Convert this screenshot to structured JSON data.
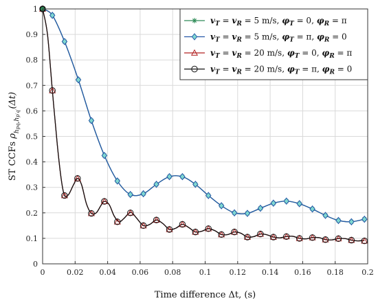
{
  "chart_data": {
    "type": "line",
    "xlabel": "Time difference  Δt, (s)",
    "ylabel": "ST CCFs ρ_{h_pq, h_p'q'}(Δt)",
    "xlim": [
      0,
      0.2
    ],
    "ylim": [
      0,
      1
    ],
    "x_ticks": [
      "0",
      "0.02",
      "0.04",
      "0.06",
      "0.08",
      "0.1",
      "0.12",
      "0.14",
      "0.16",
      "0.18",
      "0.2"
    ],
    "y_ticks": [
      "0",
      "0.1",
      "0.2",
      "0.3",
      "0.4",
      "0.5",
      "0.6",
      "0.7",
      "0.8",
      "0.9",
      "1"
    ],
    "grid": true,
    "legend_position": "top-right",
    "series": [
      {
        "name": "vT = vR = 5 m/s, φT = 0, φR = π",
        "color": "#2e8b57",
        "marker": "asterisk",
        "line": [
          [
            0,
            1
          ],
          [
            0.006,
            0.975
          ],
          [
            0.0135,
            0.872
          ],
          [
            0.022,
            0.722
          ],
          [
            0.03,
            0.562
          ],
          [
            0.038,
            0.425
          ],
          [
            0.046,
            0.325
          ],
          [
            0.054,
            0.272
          ],
          [
            0.062,
            0.275
          ],
          [
            0.07,
            0.312
          ],
          [
            0.078,
            0.342
          ],
          [
            0.086,
            0.342
          ],
          [
            0.094,
            0.312
          ],
          [
            0.102,
            0.268
          ],
          [
            0.11,
            0.228
          ],
          [
            0.118,
            0.2
          ],
          [
            0.126,
            0.198
          ],
          [
            0.134,
            0.218
          ],
          [
            0.142,
            0.238
          ],
          [
            0.15,
            0.246
          ],
          [
            0.158,
            0.236
          ],
          [
            0.166,
            0.215
          ],
          [
            0.174,
            0.19
          ],
          [
            0.182,
            0.17
          ],
          [
            0.19,
            0.165
          ],
          [
            0.198,
            0.175
          ]
        ],
        "markers": [
          [
            0,
            1
          ],
          [
            0.006,
            0.975
          ],
          [
            0.0135,
            0.872
          ],
          [
            0.022,
            0.722
          ],
          [
            0.03,
            0.562
          ],
          [
            0.038,
            0.425
          ],
          [
            0.046,
            0.325
          ],
          [
            0.054,
            0.272
          ],
          [
            0.062,
            0.275
          ],
          [
            0.07,
            0.312
          ],
          [
            0.078,
            0.342
          ],
          [
            0.086,
            0.342
          ],
          [
            0.094,
            0.312
          ],
          [
            0.102,
            0.268
          ],
          [
            0.11,
            0.228
          ],
          [
            0.118,
            0.2
          ],
          [
            0.126,
            0.198
          ],
          [
            0.134,
            0.218
          ],
          [
            0.142,
            0.238
          ],
          [
            0.15,
            0.246
          ],
          [
            0.158,
            0.236
          ],
          [
            0.166,
            0.215
          ],
          [
            0.174,
            0.19
          ],
          [
            0.182,
            0.17
          ],
          [
            0.19,
            0.165
          ],
          [
            0.198,
            0.175
          ]
        ]
      },
      {
        "name": "vT = vR = 5 m/s, φT = π, φR = 0",
        "color": "#2457a8",
        "marker": "diamond",
        "line": [
          [
            0,
            1
          ],
          [
            0.006,
            0.975
          ],
          [
            0.0135,
            0.872
          ],
          [
            0.022,
            0.722
          ],
          [
            0.03,
            0.562
          ],
          [
            0.038,
            0.425
          ],
          [
            0.046,
            0.325
          ],
          [
            0.054,
            0.272
          ],
          [
            0.062,
            0.275
          ],
          [
            0.07,
            0.312
          ],
          [
            0.078,
            0.342
          ],
          [
            0.086,
            0.342
          ],
          [
            0.094,
            0.312
          ],
          [
            0.102,
            0.268
          ],
          [
            0.11,
            0.228
          ],
          [
            0.118,
            0.2
          ],
          [
            0.126,
            0.198
          ],
          [
            0.134,
            0.218
          ],
          [
            0.142,
            0.238
          ],
          [
            0.15,
            0.246
          ],
          [
            0.158,
            0.236
          ],
          [
            0.166,
            0.215
          ],
          [
            0.174,
            0.19
          ],
          [
            0.182,
            0.17
          ],
          [
            0.19,
            0.165
          ],
          [
            0.198,
            0.175
          ]
        ],
        "markers": [
          [
            0,
            1
          ],
          [
            0.006,
            0.975
          ],
          [
            0.0135,
            0.872
          ],
          [
            0.022,
            0.722
          ],
          [
            0.03,
            0.562
          ],
          [
            0.038,
            0.425
          ],
          [
            0.046,
            0.325
          ],
          [
            0.054,
            0.272
          ],
          [
            0.062,
            0.275
          ],
          [
            0.07,
            0.312
          ],
          [
            0.078,
            0.342
          ],
          [
            0.086,
            0.342
          ],
          [
            0.094,
            0.312
          ],
          [
            0.102,
            0.268
          ],
          [
            0.11,
            0.228
          ],
          [
            0.118,
            0.2
          ],
          [
            0.126,
            0.198
          ],
          [
            0.134,
            0.218
          ],
          [
            0.142,
            0.238
          ],
          [
            0.15,
            0.246
          ],
          [
            0.158,
            0.236
          ],
          [
            0.166,
            0.215
          ],
          [
            0.174,
            0.19
          ],
          [
            0.182,
            0.17
          ],
          [
            0.19,
            0.165
          ],
          [
            0.198,
            0.175
          ]
        ]
      },
      {
        "name": "vT = vR = 20 m/s, φT = 0, φR = π",
        "color": "#b22222",
        "marker": "triangle",
        "line": [
          [
            0,
            1
          ],
          [
            0.003,
            0.9
          ],
          [
            0.006,
            0.68
          ],
          [
            0.009,
            0.47
          ],
          [
            0.0115,
            0.33
          ],
          [
            0.0135,
            0.268
          ],
          [
            0.016,
            0.272
          ],
          [
            0.019,
            0.31
          ],
          [
            0.0215,
            0.335
          ],
          [
            0.024,
            0.31
          ],
          [
            0.027,
            0.235
          ],
          [
            0.03,
            0.198
          ],
          [
            0.033,
            0.2
          ],
          [
            0.036,
            0.23
          ],
          [
            0.038,
            0.245
          ],
          [
            0.041,
            0.232
          ],
          [
            0.044,
            0.188
          ],
          [
            0.047,
            0.165
          ],
          [
            0.05,
            0.178
          ],
          [
            0.053,
            0.198
          ],
          [
            0.055,
            0.2
          ],
          [
            0.058,
            0.178
          ],
          [
            0.062,
            0.15
          ],
          [
            0.066,
            0.155
          ],
          [
            0.07,
            0.172
          ],
          [
            0.074,
            0.158
          ],
          [
            0.078,
            0.135
          ],
          [
            0.082,
            0.14
          ],
          [
            0.086,
            0.155
          ],
          [
            0.09,
            0.142
          ],
          [
            0.094,
            0.125
          ],
          [
            0.098,
            0.128
          ],
          [
            0.102,
            0.138
          ],
          [
            0.106,
            0.13
          ],
          [
            0.11,
            0.115
          ],
          [
            0.114,
            0.115
          ],
          [
            0.118,
            0.125
          ],
          [
            0.122,
            0.12
          ],
          [
            0.126,
            0.105
          ],
          [
            0.13,
            0.107
          ],
          [
            0.134,
            0.117
          ],
          [
            0.138,
            0.114
          ],
          [
            0.142,
            0.105
          ],
          [
            0.146,
            0.102
          ],
          [
            0.15,
            0.107
          ],
          [
            0.154,
            0.108
          ],
          [
            0.158,
            0.1
          ],
          [
            0.162,
            0.098
          ],
          [
            0.166,
            0.103
          ],
          [
            0.17,
            0.103
          ],
          [
            0.174,
            0.095
          ],
          [
            0.178,
            0.094
          ],
          [
            0.182,
            0.099
          ],
          [
            0.186,
            0.099
          ],
          [
            0.19,
            0.093
          ],
          [
            0.194,
            0.09
          ],
          [
            0.198,
            0.092
          ]
        ],
        "markers": [
          [
            0,
            1
          ],
          [
            0.006,
            0.68
          ],
          [
            0.0135,
            0.268
          ],
          [
            0.0215,
            0.335
          ],
          [
            0.03,
            0.198
          ],
          [
            0.038,
            0.245
          ],
          [
            0.046,
            0.165
          ],
          [
            0.054,
            0.2
          ],
          [
            0.062,
            0.15
          ],
          [
            0.07,
            0.172
          ],
          [
            0.078,
            0.135
          ],
          [
            0.086,
            0.155
          ],
          [
            0.094,
            0.125
          ],
          [
            0.102,
            0.138
          ],
          [
            0.11,
            0.115
          ],
          [
            0.118,
            0.125
          ],
          [
            0.126,
            0.105
          ],
          [
            0.134,
            0.117
          ],
          [
            0.142,
            0.105
          ],
          [
            0.15,
            0.107
          ],
          [
            0.158,
            0.1
          ],
          [
            0.166,
            0.103
          ],
          [
            0.174,
            0.095
          ],
          [
            0.182,
            0.099
          ],
          [
            0.19,
            0.093
          ],
          [
            0.198,
            0.09
          ]
        ]
      },
      {
        "name": "vT = vR = 20 m/s, φT = π, φR = 0",
        "color": "#111111",
        "marker": "circle",
        "line": [
          [
            0,
            1
          ],
          [
            0.003,
            0.9
          ],
          [
            0.006,
            0.68
          ],
          [
            0.009,
            0.47
          ],
          [
            0.0115,
            0.33
          ],
          [
            0.0135,
            0.268
          ],
          [
            0.016,
            0.272
          ],
          [
            0.019,
            0.31
          ],
          [
            0.0215,
            0.335
          ],
          [
            0.024,
            0.31
          ],
          [
            0.027,
            0.235
          ],
          [
            0.03,
            0.198
          ],
          [
            0.033,
            0.2
          ],
          [
            0.036,
            0.23
          ],
          [
            0.038,
            0.245
          ],
          [
            0.041,
            0.232
          ],
          [
            0.044,
            0.188
          ],
          [
            0.047,
            0.165
          ],
          [
            0.05,
            0.178
          ],
          [
            0.053,
            0.198
          ],
          [
            0.055,
            0.2
          ],
          [
            0.058,
            0.178
          ],
          [
            0.062,
            0.15
          ],
          [
            0.066,
            0.155
          ],
          [
            0.07,
            0.172
          ],
          [
            0.074,
            0.158
          ],
          [
            0.078,
            0.135
          ],
          [
            0.082,
            0.14
          ],
          [
            0.086,
            0.155
          ],
          [
            0.09,
            0.142
          ],
          [
            0.094,
            0.125
          ],
          [
            0.098,
            0.128
          ],
          [
            0.102,
            0.138
          ],
          [
            0.106,
            0.13
          ],
          [
            0.11,
            0.115
          ],
          [
            0.114,
            0.115
          ],
          [
            0.118,
            0.125
          ],
          [
            0.122,
            0.12
          ],
          [
            0.126,
            0.105
          ],
          [
            0.13,
            0.107
          ],
          [
            0.134,
            0.117
          ],
          [
            0.138,
            0.114
          ],
          [
            0.142,
            0.105
          ],
          [
            0.146,
            0.102
          ],
          [
            0.15,
            0.107
          ],
          [
            0.154,
            0.108
          ],
          [
            0.158,
            0.1
          ],
          [
            0.162,
            0.098
          ],
          [
            0.166,
            0.103
          ],
          [
            0.17,
            0.103
          ],
          [
            0.174,
            0.095
          ],
          [
            0.178,
            0.094
          ],
          [
            0.182,
            0.099
          ],
          [
            0.186,
            0.099
          ],
          [
            0.19,
            0.093
          ],
          [
            0.194,
            0.09
          ],
          [
            0.198,
            0.092
          ]
        ],
        "markers": [
          [
            0,
            1
          ],
          [
            0.006,
            0.68
          ],
          [
            0.0135,
            0.268
          ],
          [
            0.0215,
            0.335
          ],
          [
            0.03,
            0.198
          ],
          [
            0.038,
            0.245
          ],
          [
            0.046,
            0.165
          ],
          [
            0.054,
            0.2
          ],
          [
            0.062,
            0.15
          ],
          [
            0.07,
            0.172
          ],
          [
            0.078,
            0.135
          ],
          [
            0.086,
            0.155
          ],
          [
            0.094,
            0.125
          ],
          [
            0.102,
            0.138
          ],
          [
            0.11,
            0.115
          ],
          [
            0.118,
            0.125
          ],
          [
            0.126,
            0.105
          ],
          [
            0.134,
            0.117
          ],
          [
            0.142,
            0.105
          ],
          [
            0.15,
            0.107
          ],
          [
            0.158,
            0.1
          ],
          [
            0.166,
            0.103
          ],
          [
            0.174,
            0.095
          ],
          [
            0.182,
            0.099
          ],
          [
            0.19,
            0.093
          ],
          [
            0.198,
            0.09
          ]
        ]
      }
    ],
    "legend": [
      {
        "v": "v",
        "sub1": "T",
        "eq1": " = ",
        "v2": "v",
        "sub2": "R",
        "eq2": " = 5 m/s, ",
        "p1": "φ",
        "ps1": "T",
        "pv1": " = 0,  ",
        "p2": "φ",
        "ps2": "R",
        "pv2": " = π"
      },
      {
        "v": "v",
        "sub1": "T",
        "eq1": " = ",
        "v2": "v",
        "sub2": "R",
        "eq2": " = 5 m/s, ",
        "p1": "φ",
        "ps1": "T",
        "pv1": " = π,  ",
        "p2": "φ",
        "ps2": "R",
        "pv2": " = 0"
      },
      {
        "v": "v",
        "sub1": "T",
        "eq1": " = ",
        "v2": "v",
        "sub2": "R",
        "eq2": " = 20 m/s, ",
        "p1": "φ",
        "ps1": "T",
        "pv1": " = 0,  ",
        "p2": "φ",
        "ps2": "R",
        "pv2": " = π"
      },
      {
        "v": "v",
        "sub1": "T",
        "eq1": " = ",
        "v2": "v",
        "sub2": "R",
        "eq2": " = 20 m/s, ",
        "p1": "φ",
        "ps1": "T",
        "pv1": " = π,  ",
        "p2": "φ",
        "ps2": "R",
        "pv2": " = 0"
      }
    ],
    "ylabel_parts": {
      "prefix": "ST CCFs ",
      "rho": "ρ",
      "sub": "h",
      "sub_a": "pq",
      "sep": ",",
      "sub2": "h",
      "sub2_a": "p′q′",
      "suffix": "(Δt)"
    }
  }
}
